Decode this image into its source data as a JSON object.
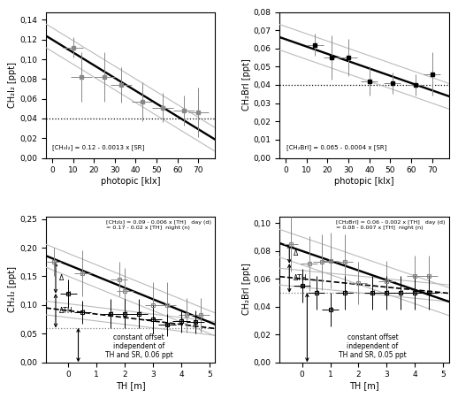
{
  "chart_data": [
    {
      "type": "scatter",
      "x_label": "photopic [klx]",
      "y_label": "CH₂I₂ [ppt]",
      "equation": "[CH₂I₂] = 0.12 - 0.0013 x [SR]",
      "xlim": [
        -3,
        78
      ],
      "ylim": [
        0.0,
        0.148
      ],
      "xticks": [
        0,
        10,
        20,
        30,
        40,
        50,
        60,
        70
      ],
      "yticks": [
        {
          "value": 0.0,
          "label": "0,00"
        },
        {
          "value": 0.02,
          "label": "0,02"
        },
        {
          "value": 0.04,
          "label": "0,04"
        },
        {
          "value": 0.06,
          "label": "0,06"
        },
        {
          "value": 0.08,
          "label": "0,08"
        },
        {
          "value": 0.1,
          "label": "0,10"
        },
        {
          "value": 0.12,
          "label": "0,12"
        },
        {
          "value": 0.14,
          "label": "0,14"
        }
      ],
      "series": [
        {
          "type": "line",
          "color": "#bbbbbb",
          "line_style": "solid",
          "x": [
            -3,
            78
          ],
          "values": [
            0.1359,
            0.0306
          ]
        },
        {
          "type": "line",
          "color": "#bbbbbb",
          "line_style": "solid",
          "x": [
            -3,
            78
          ],
          "values": [
            0.1119,
            0.0066
          ]
        },
        {
          "type": "line",
          "color": "#000000",
          "line_style": "solid",
          "x": [
            -3,
            78
          ],
          "values": [
            0.1239,
            0.0186
          ]
        },
        {
          "type": "errorbar",
          "color": "#888888",
          "marker": "square",
          "x": [
            10,
            14,
            25,
            33,
            43,
            53,
            63,
            70
          ],
          "values": [
            0.112,
            0.082,
            0.082,
            0.074,
            0.057,
            0.051,
            0.048,
            0.046
          ],
          "x_err": [
            5,
            5,
            5,
            5,
            5,
            5,
            5,
            5
          ],
          "y_err": [
            0.01,
            0.025,
            0.025,
            0.018,
            0.02,
            0.015,
            0.015,
            0.025
          ]
        },
        {
          "type": "hline",
          "color": "#000000",
          "line_style": "dotted",
          "values": [
            0.04
          ]
        }
      ]
    },
    {
      "type": "scatter",
      "x_label": "photopic [klx]",
      "y_label": "CH₂BrI [ppt]",
      "equation": "[CH₂BrI] = 0.065 - 0.0004 x [SR]",
      "xlim": [
        -3,
        78
      ],
      "ylim": [
        0.0,
        0.08
      ],
      "xticks": [
        0,
        10,
        20,
        30,
        40,
        50,
        60,
        70
      ],
      "yticks": [
        {
          "value": 0.0,
          "label": "0,00"
        },
        {
          "value": 0.01,
          "label": "0,01"
        },
        {
          "value": 0.02,
          "label": "0,02"
        },
        {
          "value": 0.03,
          "label": "0,03"
        },
        {
          "value": 0.04,
          "label": "0,04"
        },
        {
          "value": 0.05,
          "label": "0,05"
        },
        {
          "value": 0.06,
          "label": "0,06"
        },
        {
          "value": 0.07,
          "label": "0,07"
        },
        {
          "value": 0.08,
          "label": "0,08"
        }
      ],
      "series": [
        {
          "type": "line",
          "color": "#bbbbbb",
          "line_style": "solid",
          "x": [
            -3,
            78
          ],
          "values": [
            0.0732,
            0.0408
          ]
        },
        {
          "type": "line",
          "color": "#bbbbbb",
          "line_style": "solid",
          "x": [
            -3,
            78
          ],
          "values": [
            0.0592,
            0.0268
          ]
        },
        {
          "type": "line",
          "color": "#000000",
          "line_style": "solid",
          "x": [
            -3,
            78
          ],
          "values": [
            0.0662,
            0.0338
          ]
        },
        {
          "type": "errorbar",
          "color": "#888888",
          "marker": "none",
          "x": [
            14,
            22,
            30,
            40,
            51,
            62,
            70
          ],
          "values": [
            0.062,
            0.055,
            0.055,
            0.042,
            0.041,
            0.04,
            0.046
          ],
          "x_err": [
            4,
            4,
            4,
            4,
            4,
            4,
            4
          ],
          "y_err": [
            0.006,
            0.012,
            0.01,
            0.008,
            0.006,
            0.006,
            0.012
          ]
        },
        {
          "type": "scatter",
          "color": "#000000",
          "marker": "square",
          "x": [
            14,
            22,
            30,
            40,
            51,
            62,
            70
          ],
          "values": [
            0.062,
            0.055,
            0.055,
            0.042,
            0.041,
            0.04,
            0.046
          ]
        },
        {
          "type": "hline",
          "color": "#000000",
          "line_style": "dotted",
          "values": [
            0.04
          ]
        }
      ]
    },
    {
      "type": "scatter",
      "x_label": "TH [m]",
      "y_label": "CH₂I₂ [ppt]",
      "equations": [
        "[CH₂I₂] = 0.09 - 0.006 x [TH]   day (d)",
        "= 0.17 - 0.02 x [TH]  night (n)"
      ],
      "annotation": "constant offset\nindependent of\nTH and SR, 0.06 ppt",
      "xlim": [
        -0.8,
        5.2
      ],
      "ylim": [
        0.0,
        0.255
      ],
      "xticks": [
        0,
        1,
        2,
        3,
        4,
        5
      ],
      "yticks": [
        {
          "value": 0.0,
          "label": "0,00"
        },
        {
          "value": 0.05,
          "label": "0,05"
        },
        {
          "value": 0.1,
          "label": "0,10"
        },
        {
          "value": 0.15,
          "label": "0,15"
        },
        {
          "value": 0.2,
          "label": "0,20"
        },
        {
          "value": 0.25,
          "label": "0,25"
        }
      ],
      "series": [
        {
          "type": "line",
          "color": "#bbbbbb",
          "line_style": "solid",
          "x": [
            -0.8,
            5.2
          ],
          "values": [
            0.206,
            0.086
          ]
        },
        {
          "type": "line",
          "color": "#bbbbbb",
          "line_style": "solid",
          "x": [
            -0.8,
            5.2
          ],
          "values": [
            0.166,
            0.046
          ]
        },
        {
          "type": "line",
          "color": "#bbbbbb",
          "line_style": "solid",
          "x": [
            -0.8,
            5.2
          ],
          "values": [
            0.1068,
            0.0708
          ]
        },
        {
          "type": "line",
          "color": "#bbbbbb",
          "line_style": "solid",
          "x": [
            -0.8,
            5.2
          ],
          "values": [
            0.0828,
            0.0468
          ]
        },
        {
          "type": "line",
          "color": "#000000",
          "line_style": "solid",
          "x": [
            -0.8,
            5.2
          ],
          "values": [
            0.186,
            0.066
          ]
        },
        {
          "type": "line",
          "color": "#000000",
          "line_style": "dashed",
          "x": [
            -0.8,
            5.2
          ],
          "values": [
            0.0948,
            0.0588
          ]
        },
        {
          "type": "errorbar",
          "color": "#888888",
          "marker": "open_square",
          "point_label": "n",
          "x": [
            -0.5,
            0.5,
            1.8,
            2.0,
            3.0,
            3.5,
            4.2,
            4.7
          ],
          "values": [
            0.175,
            0.155,
            0.145,
            0.125,
            0.1,
            0.1,
            0.082,
            0.082
          ],
          "x_err": [
            0.25,
            0.3,
            0.3,
            0.3,
            0.3,
            0.3,
            0.3,
            0.3
          ],
          "y_err": [
            0.025,
            0.04,
            0.03,
            0.04,
            0.04,
            0.04,
            0.03,
            0.03
          ]
        },
        {
          "type": "errorbar",
          "color": "#000000",
          "marker": "open_square",
          "point_label": "d",
          "x": [
            0.0,
            0.5,
            1.5,
            2.0,
            2.5,
            3.0,
            3.5,
            4.0,
            4.5
          ],
          "values": [
            0.12,
            0.088,
            0.085,
            0.085,
            0.085,
            0.075,
            0.065,
            0.072,
            0.07
          ],
          "x_err": [
            0.3,
            0.3,
            0.3,
            0.3,
            0.3,
            0.3,
            0.3,
            0.3,
            0.3
          ],
          "y_err": [
            0.025,
            0.02,
            0.025,
            0.025,
            0.025,
            0.025,
            0.02,
            0.02,
            0.02
          ]
        },
        {
          "type": "hline",
          "color": "#808080",
          "line_style": "dotted",
          "values": [
            0.06
          ]
        }
      ],
      "arrows": [
        {
          "x": 0.35,
          "y": [
            0.0,
            0.06
          ]
        },
        {
          "x": -0.45,
          "y": [
            0.175,
            0.12
          ],
          "label": "Δ"
        },
        {
          "x": -0.45,
          "y": [
            0.12,
            0.06
          ],
          "label": "ΔTH"
        }
      ]
    },
    {
      "type": "scatter",
      "x_label": "TH [m]",
      "y_label": "CH₂BrI [ppt]",
      "equations": [
        "[CH₂BrI] = 0.06 - 0.002 x [TH]   day (d)",
        "= 0.08 - 0.007 x [TH]  night (n)"
      ],
      "annotation": "constant offset\nindependent of\nTH and SR, 0.05 ppt",
      "xlim": [
        -0.8,
        5.2
      ],
      "ylim": [
        0.0,
        0.105
      ],
      "xticks": [
        0,
        1,
        2,
        3,
        4,
        5
      ],
      "yticks": [
        {
          "value": 0.0,
          "label": "0,00"
        },
        {
          "value": 0.02,
          "label": "0,02"
        },
        {
          "value": 0.04,
          "label": "0,04"
        },
        {
          "value": 0.06,
          "label": "0,06"
        },
        {
          "value": 0.08,
          "label": "0,08"
        },
        {
          "value": 0.1,
          "label": "0,10"
        }
      ],
      "series": [
        {
          "type": "line",
          "color": "#bbbbbb",
          "line_style": "solid",
          "x": [
            -0.8,
            5.2
          ],
          "values": [
            0.0956,
            0.0536
          ]
        },
        {
          "type": "line",
          "color": "#bbbbbb",
          "line_style": "solid",
          "x": [
            -0.8,
            5.2
          ],
          "values": [
            0.0756,
            0.0336
          ]
        },
        {
          "type": "line",
          "color": "#bbbbbb",
          "line_style": "solid",
          "x": [
            -0.8,
            5.2
          ],
          "values": [
            0.0676,
            0.0556
          ]
        },
        {
          "type": "line",
          "color": "#bbbbbb",
          "line_style": "solid",
          "x": [
            -0.8,
            5.2
          ],
          "values": [
            0.0556,
            0.0436
          ]
        },
        {
          "type": "line",
          "color": "#000000",
          "line_style": "solid",
          "x": [
            -0.8,
            5.2
          ],
          "values": [
            0.0856,
            0.0436
          ]
        },
        {
          "type": "line",
          "color": "#000000",
          "line_style": "dashed",
          "x": [
            -0.8,
            5.2
          ],
          "values": [
            0.0616,
            0.0496
          ]
        },
        {
          "type": "errorbar",
          "color": "#888888",
          "marker": "open_square",
          "point_label": "n",
          "x": [
            -0.4,
            0.25,
            0.7,
            1.0,
            1.5,
            2.0,
            3.0,
            4.0,
            4.5
          ],
          "values": [
            0.085,
            0.071,
            0.072,
            0.073,
            0.072,
            0.057,
            0.058,
            0.062,
            0.062
          ],
          "x_err": [
            0.25,
            0.3,
            0.3,
            0.3,
            0.3,
            0.3,
            0.3,
            0.3,
            0.3
          ],
          "y_err": [
            0.02,
            0.02,
            0.02,
            0.02,
            0.02,
            0.015,
            0.015,
            0.015,
            0.015
          ]
        },
        {
          "type": "errorbar",
          "color": "#000000",
          "marker": "open_square",
          "point_label": "d",
          "x": [
            0.0,
            0.5,
            1.0,
            1.5,
            2.5,
            3.0,
            3.5,
            4.0,
            4.5
          ],
          "values": [
            0.055,
            0.05,
            0.038,
            0.05,
            0.05,
            0.05,
            0.05,
            0.05,
            0.05
          ],
          "x_err": [
            0.3,
            0.3,
            0.3,
            0.3,
            0.3,
            0.3,
            0.3,
            0.3,
            0.3
          ],
          "y_err": [
            0.012,
            0.012,
            0.012,
            0.012,
            0.012,
            0.012,
            0.012,
            0.012,
            0.012
          ]
        },
        {
          "type": "hline",
          "color": "#808080",
          "line_style": "dotted",
          "values": [
            0.05
          ]
        }
      ],
      "arrows": [
        {
          "x": 0.18,
          "y": [
            0.0,
            0.05
          ]
        },
        {
          "x": -0.45,
          "y": [
            0.085,
            0.071
          ],
          "label": "Δ"
        },
        {
          "x": -0.45,
          "y": [
            0.071,
            0.05
          ],
          "label": "ΔTH"
        }
      ]
    }
  ]
}
